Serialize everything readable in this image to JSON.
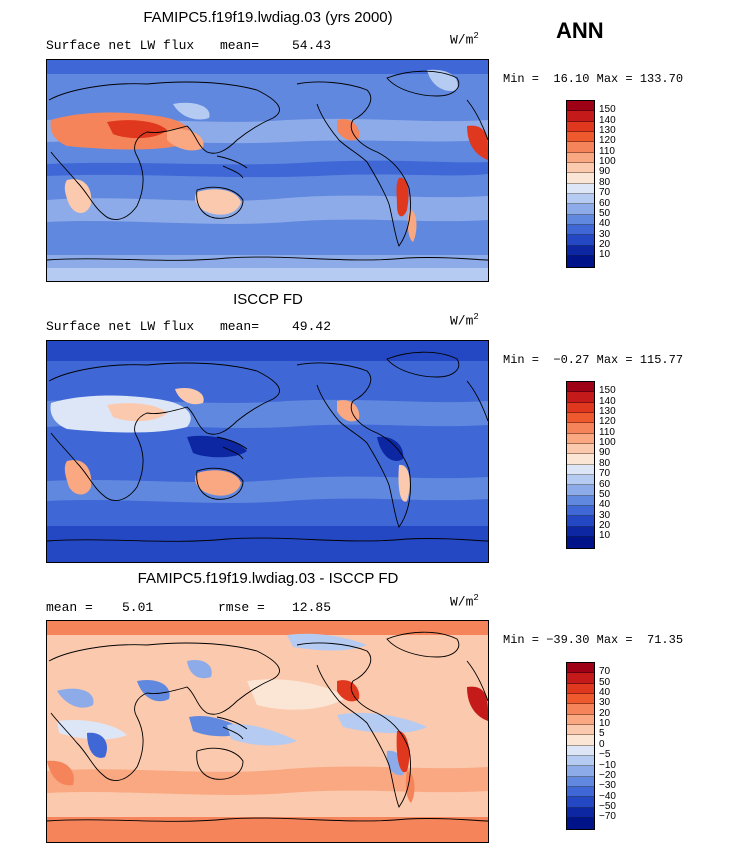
{
  "season": "ANN",
  "panels": [
    {
      "title": "FAMIPC5.f19f19.lwdiag.03 (yrs 2000)",
      "left_label": "Surface net LW flux",
      "stat_label": "mean=",
      "stat_value": "54.43",
      "units_base": "W/m",
      "units_exp": "2",
      "minmax": "Min =  16.10 Max = 133.70",
      "colorbar_levels": [
        "150",
        "140",
        "130",
        "120",
        "110",
        "100",
        "90",
        "80",
        "70",
        "60",
        "50",
        "40",
        "30",
        "20",
        "10"
      ],
      "colorbar_colors": [
        "#9e0016",
        "#c41a1a",
        "#e0381e",
        "#ee5a2e",
        "#f5845a",
        "#f9a882",
        "#fbc9ad",
        "#fbe6d6",
        "#dde6f7",
        "#b6cbf2",
        "#8dabe9",
        "#6188df",
        "#3f68d6",
        "#2447c4",
        "#0d27a3",
        "#001388"
      ]
    },
    {
      "title": "ISCCP FD",
      "left_label": "Surface net LW flux",
      "stat_label": "mean=",
      "stat_value": "49.42",
      "units_base": "W/m",
      "units_exp": "2",
      "minmax": "Min =  −0.27 Max = 115.77",
      "colorbar_levels": [
        "150",
        "140",
        "130",
        "120",
        "110",
        "100",
        "90",
        "80",
        "70",
        "60",
        "50",
        "40",
        "30",
        "20",
        "10"
      ],
      "colorbar_colors": [
        "#9e0016",
        "#c41a1a",
        "#e0381e",
        "#ee5a2e",
        "#f5845a",
        "#f9a882",
        "#fbc9ad",
        "#fbe6d6",
        "#dde6f7",
        "#b6cbf2",
        "#8dabe9",
        "#6188df",
        "#3f68d6",
        "#2447c4",
        "#0d27a3",
        "#001388"
      ]
    },
    {
      "title": "FAMIPC5.f19f19.lwdiag.03 - ISCCP FD",
      "left_label": "mean =",
      "left_value": "5.01",
      "stat_label": "rmse =",
      "stat_value": "12.85",
      "units_base": "W/m",
      "units_exp": "2",
      "minmax": "Min = −39.30 Max =  71.35",
      "colorbar_levels": [
        "70",
        "50",
        "40",
        "30",
        "20",
        "10",
        "5",
        "0",
        "−5",
        "−10",
        "−20",
        "−30",
        "−40",
        "−50",
        "−70"
      ],
      "colorbar_colors": [
        "#9e0016",
        "#c41a1a",
        "#e0381e",
        "#ee5a2e",
        "#f5845a",
        "#f9a882",
        "#fbc9ad",
        "#fbe6d6",
        "#dde6f7",
        "#b6cbf2",
        "#8dabe9",
        "#6188df",
        "#3f68d6",
        "#2447c4",
        "#0d27a3",
        "#001388"
      ]
    }
  ]
}
